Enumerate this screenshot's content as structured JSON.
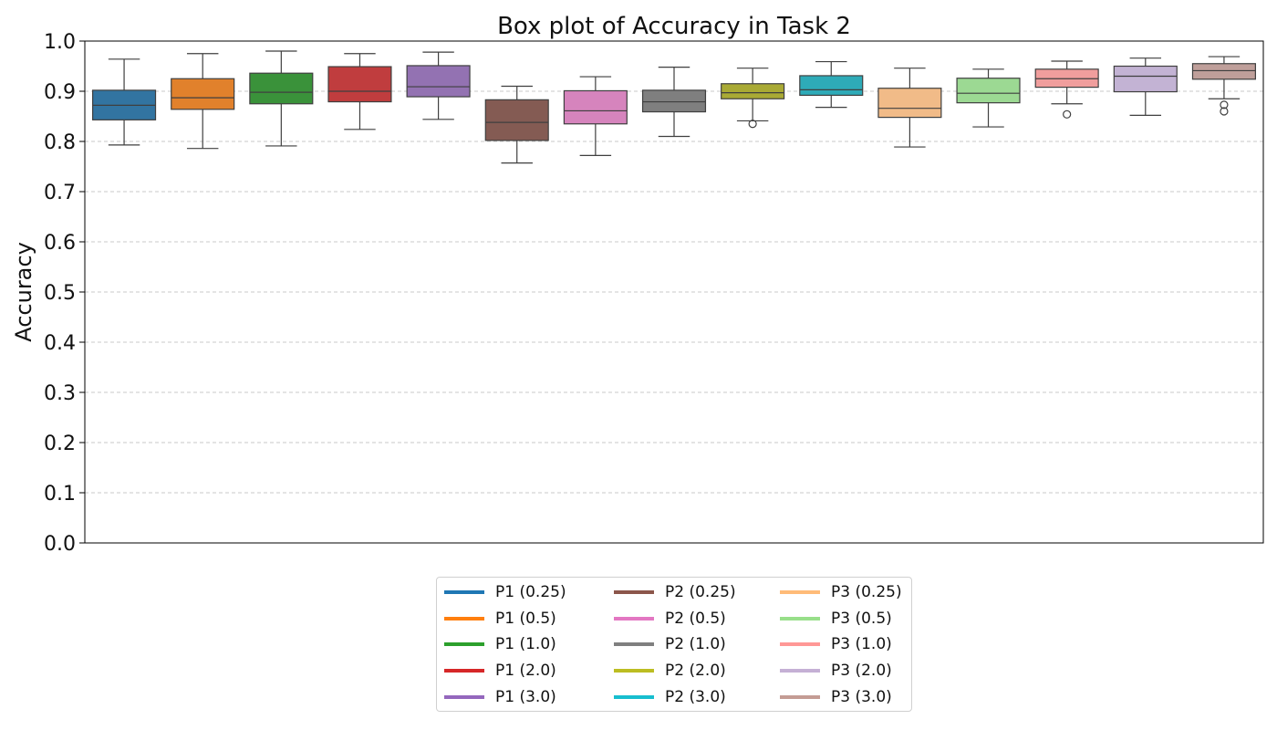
{
  "chart_data": {
    "type": "box",
    "title": "Box plot of Accuracy in Task 2",
    "xlabel": "",
    "ylabel": "Accuracy",
    "ylim": [
      0.0,
      1.0
    ],
    "yticks": [
      "0.0",
      "0.1",
      "0.2",
      "0.3",
      "0.4",
      "0.5",
      "0.6",
      "0.7",
      "0.8",
      "0.9",
      "1.0"
    ],
    "grid": "horizontal dashed",
    "legend_position": "bottom-center",
    "series": [
      {
        "name": "P1 (0.25)",
        "color": "#1f77b4",
        "fill": "#3274a1",
        "min": 0.793,
        "q1": 0.843,
        "median": 0.872,
        "q3": 0.902,
        "max": 0.964,
        "outliers": []
      },
      {
        "name": "P1 (0.5)",
        "color": "#ff7f0e",
        "fill": "#e1812c",
        "min": 0.786,
        "q1": 0.864,
        "median": 0.887,
        "q3": 0.925,
        "max": 0.975,
        "outliers": []
      },
      {
        "name": "P1 (1.0)",
        "color": "#2ca02c",
        "fill": "#3a923a",
        "min": 0.791,
        "q1": 0.875,
        "median": 0.898,
        "q3": 0.936,
        "max": 0.98,
        "outliers": []
      },
      {
        "name": "P1 (2.0)",
        "color": "#d62728",
        "fill": "#c03d3e",
        "min": 0.824,
        "q1": 0.879,
        "median": 0.9,
        "q3": 0.949,
        "max": 0.975,
        "outliers": []
      },
      {
        "name": "P1 (3.0)",
        "color": "#9467bd",
        "fill": "#9372b2",
        "min": 0.844,
        "q1": 0.889,
        "median": 0.909,
        "q3": 0.951,
        "max": 0.978,
        "outliers": []
      },
      {
        "name": "P2 (0.25)",
        "color": "#8c564b",
        "fill": "#845b53",
        "min": 0.757,
        "q1": 0.802,
        "median": 0.838,
        "q3": 0.883,
        "max": 0.91,
        "outliers": []
      },
      {
        "name": "P2 (0.5)",
        "color": "#e377c2",
        "fill": "#d684bd",
        "min": 0.772,
        "q1": 0.835,
        "median": 0.861,
        "q3": 0.901,
        "max": 0.929,
        "outliers": []
      },
      {
        "name": "P2 (1.0)",
        "color": "#7f7f7f",
        "fill": "#7f7f7f",
        "min": 0.81,
        "q1": 0.859,
        "median": 0.879,
        "q3": 0.902,
        "max": 0.948,
        "outliers": []
      },
      {
        "name": "P2 (2.0)",
        "color": "#bcbd22",
        "fill": "#a9aa35",
        "min": 0.841,
        "q1": 0.885,
        "median": 0.897,
        "q3": 0.915,
        "max": 0.946,
        "outliers": [
          0.835
        ]
      },
      {
        "name": "P2 (3.0)",
        "color": "#17becf",
        "fill": "#2eabb8",
        "min": 0.868,
        "q1": 0.892,
        "median": 0.903,
        "q3": 0.931,
        "max": 0.959,
        "outliers": []
      },
      {
        "name": "P3 (0.25)",
        "color": "#ffbb78",
        "fill": "#f1bb88",
        "min": 0.789,
        "q1": 0.848,
        "median": 0.866,
        "q3": 0.906,
        "max": 0.946,
        "outliers": []
      },
      {
        "name": "P3 (0.5)",
        "color": "#98df8a",
        "fill": "#9cd993",
        "min": 0.829,
        "q1": 0.877,
        "median": 0.896,
        "q3": 0.926,
        "max": 0.944,
        "outliers": []
      },
      {
        "name": "P3 (1.0)",
        "color": "#ff9896",
        "fill": "#f09e9d",
        "min": 0.875,
        "q1": 0.908,
        "median": 0.925,
        "q3": 0.944,
        "max": 0.96,
        "outliers": [
          0.854
        ]
      },
      {
        "name": "P3 (2.0)",
        "color": "#c5b0d5",
        "fill": "#c3b3d4",
        "min": 0.852,
        "q1": 0.899,
        "median": 0.93,
        "q3": 0.95,
        "max": 0.966,
        "outliers": []
      },
      {
        "name": "P3 (3.0)",
        "color": "#c49c94",
        "fill": "#bf9f9a",
        "min": 0.885,
        "q1": 0.924,
        "median": 0.941,
        "q3": 0.955,
        "max": 0.969,
        "outliers": [
          0.873,
          0.86
        ]
      }
    ]
  }
}
